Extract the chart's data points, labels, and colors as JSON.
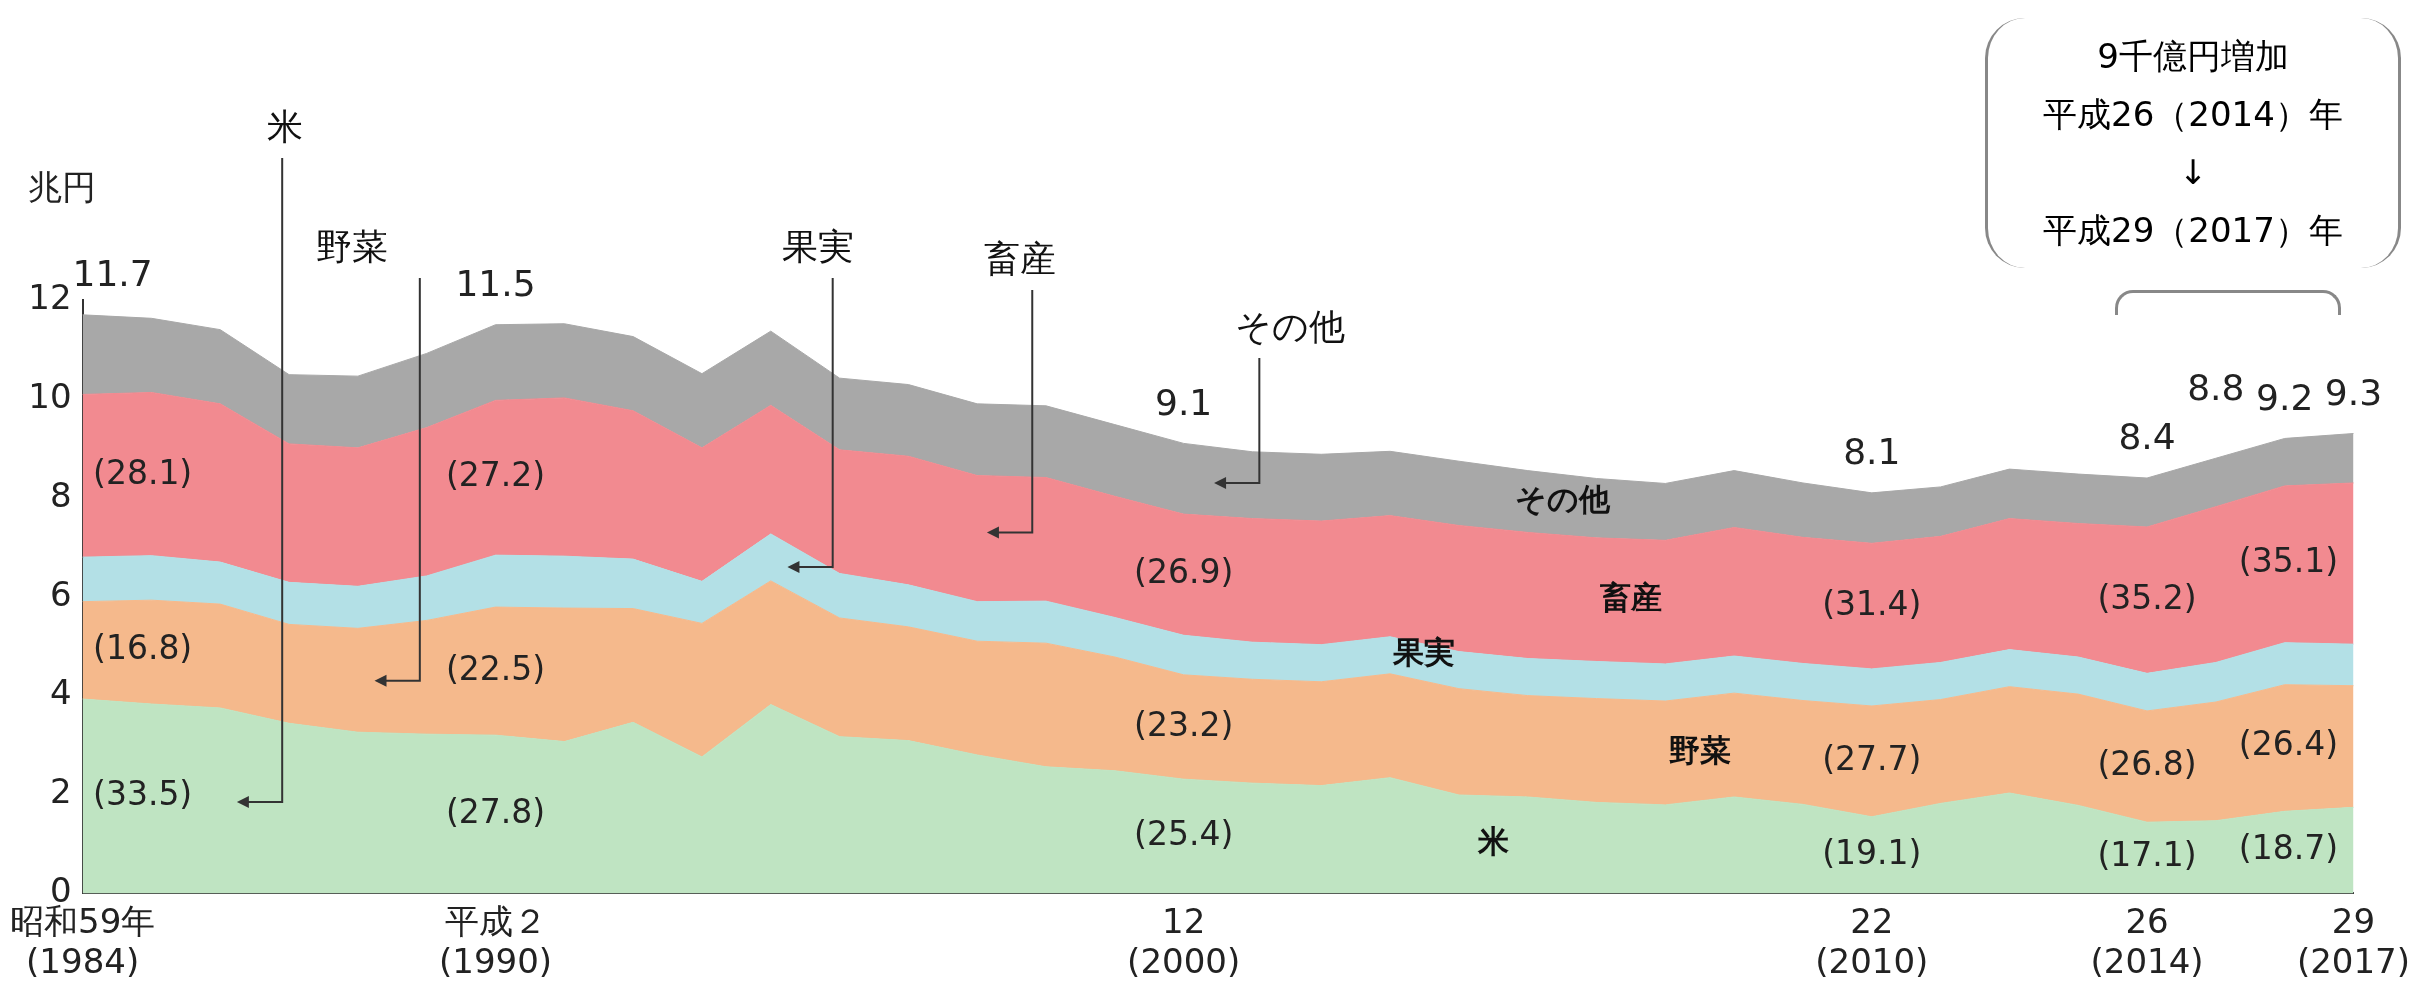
{
  "chart_data": {
    "type": "area",
    "stacked": true,
    "ylabel": "兆円",
    "categories": [
      "昭和59年\n(1984)",
      null,
      null,
      null,
      null,
      null,
      "平成２\n(1990)",
      null,
      null,
      null,
      null,
      null,
      null,
      null,
      null,
      null,
      "12\n(2000)",
      null,
      null,
      null,
      null,
      null,
      null,
      null,
      null,
      null,
      "22\n(2010)",
      null,
      null,
      null,
      "26\n(2014)",
      null,
      null,
      "29\n(2017)"
    ],
    "ylim": [
      0,
      12
    ],
    "yticks": [
      0,
      2,
      4,
      6,
      8,
      10,
      12
    ],
    "series": [
      {
        "name": "米",
        "color": "#bfe4c2",
        "values": [
          3.93,
          3.83,
          3.75,
          3.44,
          3.26,
          3.22,
          3.2,
          3.07,
          3.46,
          2.76,
          3.82,
          3.17,
          3.09,
          2.8,
          2.56,
          2.48,
          2.31,
          2.23,
          2.18,
          2.34,
          1.99,
          1.95,
          1.84,
          1.79,
          1.95,
          1.8,
          1.55,
          1.82,
          2.03,
          1.78,
          1.44,
          1.47,
          1.66,
          1.74
        ]
      },
      {
        "name": "野菜",
        "color": "#f5b98c",
        "values": [
          1.97,
          2.1,
          2.1,
          2.0,
          2.1,
          2.3,
          2.59,
          2.7,
          2.3,
          2.7,
          2.5,
          2.4,
          2.3,
          2.3,
          2.5,
          2.3,
          2.11,
          2.1,
          2.1,
          2.1,
          2.15,
          2.05,
          2.1,
          2.1,
          2.1,
          2.1,
          2.24,
          2.1,
          2.15,
          2.25,
          2.25,
          2.4,
          2.56,
          2.46
        ]
      },
      {
        "name": "果実",
        "color": "#b3e0e6",
        "values": [
          0.9,
          0.9,
          0.85,
          0.85,
          0.85,
          0.9,
          1.05,
          1.05,
          1.0,
          0.85,
          0.95,
          0.9,
          0.85,
          0.8,
          0.85,
          0.8,
          0.8,
          0.75,
          0.75,
          0.75,
          0.75,
          0.75,
          0.75,
          0.75,
          0.75,
          0.75,
          0.75,
          0.75,
          0.75,
          0.75,
          0.76,
          0.8,
          0.85,
          0.84
        ]
      },
      {
        "name": "畜産",
        "color": "#f28a90",
        "values": [
          3.29,
          3.3,
          3.2,
          2.8,
          2.8,
          3.0,
          3.13,
          3.2,
          3.0,
          2.7,
          2.6,
          2.5,
          2.6,
          2.55,
          2.5,
          2.45,
          2.45,
          2.5,
          2.5,
          2.45,
          2.55,
          2.55,
          2.5,
          2.5,
          2.6,
          2.55,
          2.54,
          2.55,
          2.65,
          2.7,
          2.96,
          3.15,
          3.17,
          3.26
        ]
      },
      {
        "name": "その他",
        "color": "#a8a8a8",
        "values": [
          1.61,
          1.5,
          1.5,
          1.4,
          1.45,
          1.5,
          1.53,
          1.5,
          1.5,
          1.5,
          1.5,
          1.45,
          1.45,
          1.45,
          1.45,
          1.45,
          1.43,
          1.35,
          1.35,
          1.3,
          1.3,
          1.25,
          1.2,
          1.15,
          1.15,
          1.1,
          1.02,
          1.0,
          1.0,
          1.0,
          0.99,
          0.98,
          0.96,
          1.0
        ]
      }
    ],
    "totals": [
      "11.7",
      null,
      null,
      null,
      null,
      null,
      "11.5",
      null,
      null,
      null,
      null,
      null,
      null,
      null,
      null,
      null,
      "9.1",
      null,
      null,
      null,
      null,
      null,
      null,
      null,
      null,
      null,
      "8.1",
      null,
      null,
      null,
      "8.4",
      "8.8",
      "9.2",
      "9.3"
    ],
    "annotations": [
      "米",
      "野菜",
      "果実",
      "畜産",
      "その他",
      "(33.5)",
      "(16.8)",
      "(28.1)",
      "(27.8)",
      "(22.5)",
      "(27.2)",
      "(25.4)",
      "(23.2)",
      "(26.9)",
      "(19.1)",
      "(27.7)",
      "(31.4)",
      "(17.1)",
      "(26.8)",
      "(35.2)",
      "(18.7)",
      "(26.4)",
      "(35.1)",
      "9千億円増加",
      "平成26（2014）年",
      "↓",
      "平成29（2017）年"
    ]
  }
}
